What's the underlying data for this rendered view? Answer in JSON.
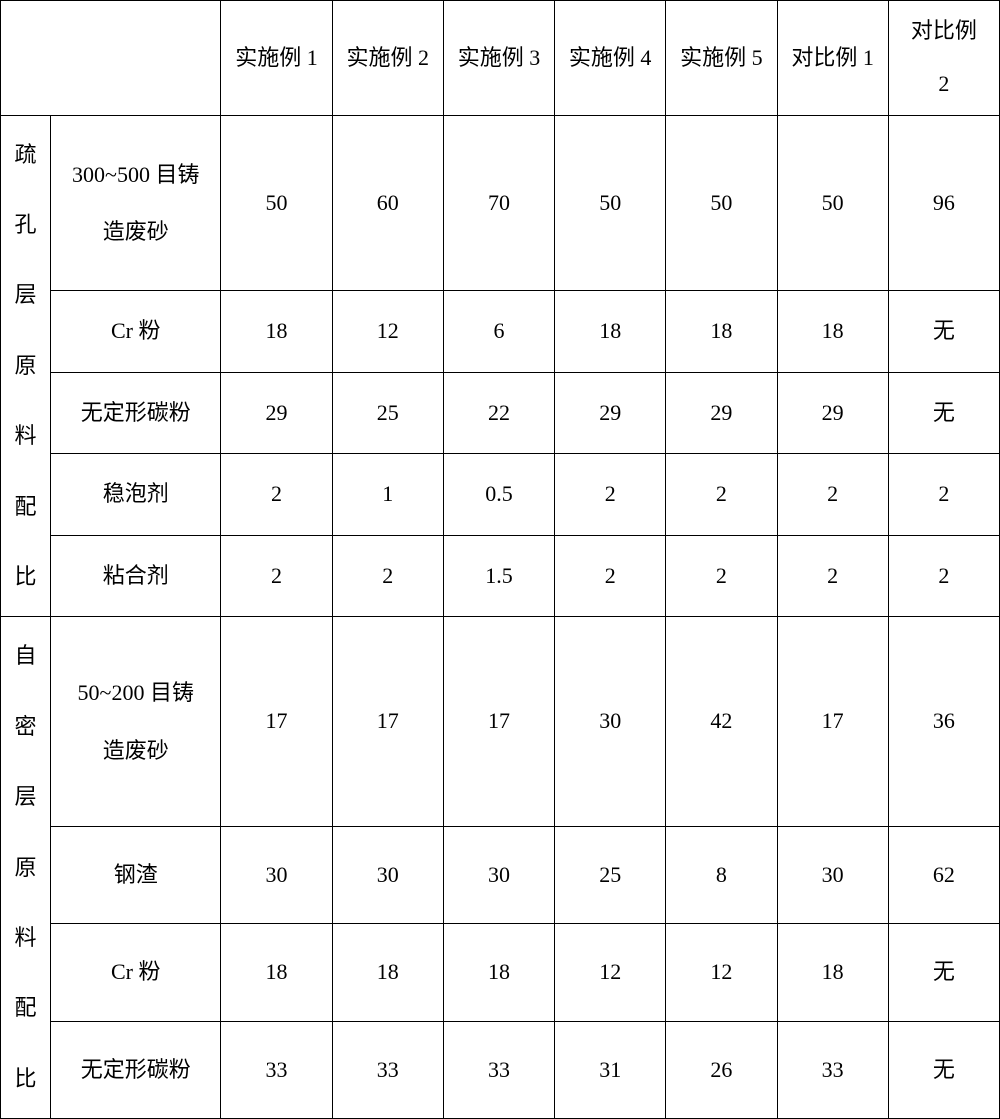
{
  "headers": {
    "blank": "",
    "ex1": "实施例 1",
    "ex2": "实施例 2",
    "ex3": "实施例 3",
    "ex4": "实施例 4",
    "ex5": "实施例 5",
    "cmp1": "对比例 1",
    "cmp2_line1": "对比例",
    "cmp2_line2": "2"
  },
  "group1": {
    "title_c1": "疏",
    "title_c2": "孔",
    "title_c3": "层",
    "title_c4": "原",
    "title_c5": "料",
    "title_c6": "配",
    "title_c7": "比",
    "r1": {
      "label_line1": "300~500 目铸",
      "label_line2": "造废砂",
      "v": [
        "50",
        "60",
        "70",
        "50",
        "50",
        "50",
        "96"
      ]
    },
    "r2": {
      "label": "Cr 粉",
      "v": [
        "18",
        "12",
        "6",
        "18",
        "18",
        "18",
        "无"
      ]
    },
    "r3": {
      "label": "无定形碳粉",
      "v": [
        "29",
        "25",
        "22",
        "29",
        "29",
        "29",
        "无"
      ]
    },
    "r4": {
      "label": "稳泡剂",
      "v": [
        "2",
        "1",
        "0.5",
        "2",
        "2",
        "2",
        "2"
      ]
    },
    "r5": {
      "label": "粘合剂",
      "v": [
        "2",
        "2",
        "1.5",
        "2",
        "2",
        "2",
        "2"
      ]
    }
  },
  "group2": {
    "title_c1": "自",
    "title_c2": "密",
    "title_c3": "层",
    "title_c4": "原",
    "title_c5": "料",
    "title_c6": "配",
    "title_c7": "比",
    "r1": {
      "label_line1": "50~200 目铸",
      "label_line2": "造废砂",
      "v": [
        "17",
        "17",
        "17",
        "30",
        "42",
        "17",
        "36"
      ]
    },
    "r2": {
      "label": "钢渣",
      "v": [
        "30",
        "30",
        "30",
        "25",
        "8",
        "30",
        "62"
      ]
    },
    "r3": {
      "label": "Cr 粉",
      "v": [
        "18",
        "18",
        "18",
        "12",
        "12",
        "18",
        "无"
      ]
    },
    "r4": {
      "label": "无定形碳粉",
      "v": [
        "33",
        "33",
        "33",
        "31",
        "26",
        "33",
        "无"
      ]
    }
  }
}
